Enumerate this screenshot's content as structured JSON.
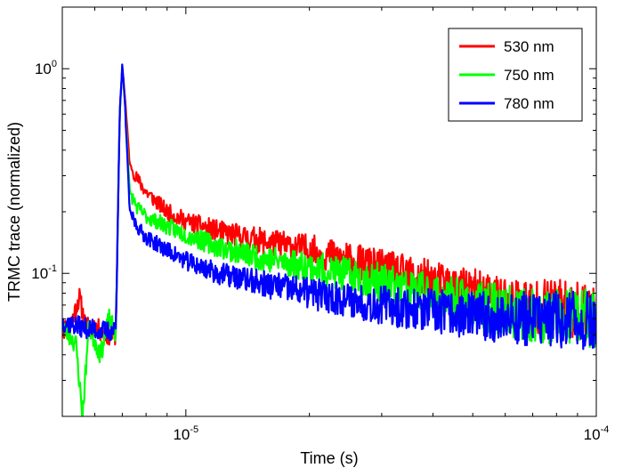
{
  "chart_data": {
    "type": "line",
    "title": "",
    "xlabel": "Time (s)",
    "ylabel": "TRMC trace (normalized)",
    "x_scale": "log",
    "y_scale": "log",
    "xlim": [
      5e-06,
      0.0001
    ],
    "ylim": [
      0.02,
      2.0
    ],
    "grid": false,
    "legend_position": "top-right",
    "x_ticks": [
      {
        "value": 1e-05,
        "base": "10",
        "exp": "-5"
      },
      {
        "value": 0.0001,
        "base": "10",
        "exp": "-4"
      }
    ],
    "y_ticks": [
      {
        "value": 0.1,
        "base": "10",
        "exp": "-1"
      },
      {
        "value": 1.0,
        "base": "10",
        "exp": "0"
      }
    ],
    "series": [
      {
        "name": "530 nm",
        "color": "#ff0000",
        "seed": 11,
        "points": [
          [
            5e-06,
            0.052
          ],
          [
            5.3e-06,
            0.06
          ],
          [
            5.5e-06,
            0.077
          ],
          [
            5.7e-06,
            0.055
          ],
          [
            6e-06,
            0.055
          ],
          [
            6.4e-06,
            0.05
          ],
          [
            6.75e-06,
            0.05
          ],
          [
            6.9e-06,
            0.6
          ],
          [
            7e-06,
            1.02
          ],
          [
            7.1e-06,
            0.75
          ],
          [
            7.3e-06,
            0.34
          ],
          [
            7.6e-06,
            0.29
          ],
          [
            8e-06,
            0.25
          ],
          [
            9e-06,
            0.2
          ],
          [
            1e-05,
            0.18
          ],
          [
            1.2e-05,
            0.16
          ],
          [
            1.5e-05,
            0.145
          ],
          [
            2e-05,
            0.13
          ],
          [
            3e-05,
            0.105
          ],
          [
            4e-05,
            0.09
          ],
          [
            5e-05,
            0.08
          ],
          [
            7e-05,
            0.07
          ],
          [
            0.0001,
            0.065
          ]
        ]
      },
      {
        "name": "750 nm",
        "color": "#00ff00",
        "seed": 23,
        "points": [
          [
            5e-06,
            0.055
          ],
          [
            5.4e-06,
            0.045
          ],
          [
            5.6e-06,
            0.02
          ],
          [
            5.8e-06,
            0.055
          ],
          [
            6.2e-06,
            0.04
          ],
          [
            6.5e-06,
            0.06
          ],
          [
            6.75e-06,
            0.05
          ],
          [
            6.9e-06,
            0.6
          ],
          [
            7e-06,
            1.03
          ],
          [
            7.1e-06,
            0.7
          ],
          [
            7.3e-06,
            0.25
          ],
          [
            7.6e-06,
            0.21
          ],
          [
            8e-06,
            0.19
          ],
          [
            9e-06,
            0.17
          ],
          [
            1e-05,
            0.155
          ],
          [
            1.2e-05,
            0.135
          ],
          [
            1.5e-05,
            0.12
          ],
          [
            2e-05,
            0.108
          ],
          [
            3e-05,
            0.09
          ],
          [
            4e-05,
            0.078
          ],
          [
            5e-05,
            0.07
          ],
          [
            7e-05,
            0.063
          ],
          [
            0.0001,
            0.06
          ]
        ]
      },
      {
        "name": "780 nm",
        "color": "#0000ff",
        "seed": 37,
        "points": [
          [
            5e-06,
            0.058
          ],
          [
            5.5e-06,
            0.055
          ],
          [
            6e-06,
            0.053
          ],
          [
            6.5e-06,
            0.052
          ],
          [
            6.75e-06,
            0.053
          ],
          [
            6.9e-06,
            0.6
          ],
          [
            7e-06,
            1.04
          ],
          [
            7.1e-06,
            0.7
          ],
          [
            7.3e-06,
            0.2
          ],
          [
            7.6e-06,
            0.17
          ],
          [
            8e-06,
            0.15
          ],
          [
            9e-06,
            0.13
          ],
          [
            1e-05,
            0.115
          ],
          [
            1.2e-05,
            0.1
          ],
          [
            1.5e-05,
            0.09
          ],
          [
            2e-05,
            0.08
          ],
          [
            3e-05,
            0.07
          ],
          [
            4e-05,
            0.065
          ],
          [
            5e-05,
            0.062
          ],
          [
            7e-05,
            0.06
          ],
          [
            0.0001,
            0.058
          ]
        ]
      }
    ]
  }
}
